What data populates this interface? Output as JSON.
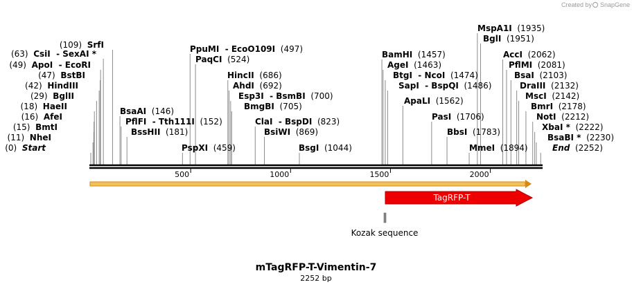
{
  "watermark": {
    "prefix": "Created by",
    "brand": "SnapGene"
  },
  "colors": {
    "orange": "#f0a030",
    "red": "#ee0000",
    "gray": "#888888",
    "backbone": "#000000"
  },
  "sequence": {
    "name": "mTagRFP-T-Vimentin-7",
    "length_label": "2252 bp",
    "length": 2252
  },
  "ruler": {
    "ticks": [
      "500",
      "1000",
      "1500",
      "2000"
    ]
  },
  "features": [
    {
      "name": "TagRFP-T",
      "start": 1501,
      "end": 2252,
      "color": "#ee0000"
    },
    {
      "name": "Kozak sequence",
      "start": 1495,
      "end": 1500,
      "color": "#888888"
    }
  ],
  "sites": [
    {
      "name": "SrfI",
      "pos_label": "(109)",
      "pos": 109
    },
    {
      "name": "CsiI  - SexAI *",
      "pos_label": "(63)",
      "pos": 63
    },
    {
      "name": "ApoI  - EcoRI",
      "pos_label": "(49)",
      "pos": 49
    },
    {
      "name": "BstBI",
      "pos_label": "(47)",
      "pos": 47
    },
    {
      "name": "HindIII",
      "pos_label": "(42)",
      "pos": 42
    },
    {
      "name": "BglII",
      "pos_label": "(29)",
      "pos": 29
    },
    {
      "name": "HaeII",
      "pos_label": "(18)",
      "pos": 18
    },
    {
      "name": "AfeI",
      "pos_label": "(16)",
      "pos": 16
    },
    {
      "name": "BmtI",
      "pos_label": "(15)",
      "pos": 15
    },
    {
      "name": "NheI",
      "pos_label": "(11)",
      "pos": 11
    },
    {
      "name": "Start",
      "pos_label": "(0)",
      "pos": 0
    },
    {
      "name": "BsaAI",
      "pos_label": "(146)",
      "pos": 146
    },
    {
      "name": "PflFI  - Tth111I",
      "pos_label": "(152)",
      "pos": 152
    },
    {
      "name": "BssHII",
      "pos_label": "(181)",
      "pos": 181
    },
    {
      "name": "PpuMI  - EcoO109I",
      "pos_label": "(497)",
      "pos": 497
    },
    {
      "name": "PaqCI",
      "pos_label": "(524)",
      "pos": 524
    },
    {
      "name": "PspXI",
      "pos_label": "(459)",
      "pos": 459
    },
    {
      "name": "HincII",
      "pos_label": "(686)",
      "pos": 686
    },
    {
      "name": "AhdI",
      "pos_label": "(692)",
      "pos": 692
    },
    {
      "name": "Esp3I  - BsmBI",
      "pos_label": "(700)",
      "pos": 700
    },
    {
      "name": "BmgBI",
      "pos_label": "(705)",
      "pos": 705
    },
    {
      "name": "ClaI  - BspDI",
      "pos_label": "(823)",
      "pos": 823
    },
    {
      "name": "BsiWI",
      "pos_label": "(869)",
      "pos": 869
    },
    {
      "name": "BsgI",
      "pos_label": "(1044)",
      "pos": 1044
    },
    {
      "name": "BamHI",
      "pos_label": "(1457)",
      "pos": 1457
    },
    {
      "name": "AgeI",
      "pos_label": "(1463)",
      "pos": 1463
    },
    {
      "name": "BtgI  - NcoI",
      "pos_label": "(1474)",
      "pos": 1474
    },
    {
      "name": "SapI  - BspQI",
      "pos_label": "(1486)",
      "pos": 1486
    },
    {
      "name": "ApaLI",
      "pos_label": "(1562)",
      "pos": 1562
    },
    {
      "name": "PasI",
      "pos_label": "(1706)",
      "pos": 1706
    },
    {
      "name": "BbsI",
      "pos_label": "(1783)",
      "pos": 1783
    },
    {
      "name": "MmeI",
      "pos_label": "(1894)",
      "pos": 1894
    },
    {
      "name": "MspA1I",
      "pos_label": "(1935)",
      "pos": 1935
    },
    {
      "name": "BglI",
      "pos_label": "(1951)",
      "pos": 1951
    },
    {
      "name": "AccI",
      "pos_label": "(2062)",
      "pos": 2062
    },
    {
      "name": "PflMI",
      "pos_label": "(2081)",
      "pos": 2081
    },
    {
      "name": "BsaI",
      "pos_label": "(2103)",
      "pos": 2103
    },
    {
      "name": "DraIII",
      "pos_label": "(2132)",
      "pos": 2132
    },
    {
      "name": "MscI",
      "pos_label": "(2142)",
      "pos": 2142
    },
    {
      "name": "BmrI",
      "pos_label": "(2178)",
      "pos": 2178
    },
    {
      "name": "NotI",
      "pos_label": "(2212)",
      "pos": 2212
    },
    {
      "name": "XbaI *",
      "pos_label": "(2222)",
      "pos": 2222
    },
    {
      "name": "BsaBI *",
      "pos_label": "(2230)",
      "pos": 2230
    },
    {
      "name": "End",
      "pos_label": "(2252)",
      "pos": 2252
    }
  ]
}
